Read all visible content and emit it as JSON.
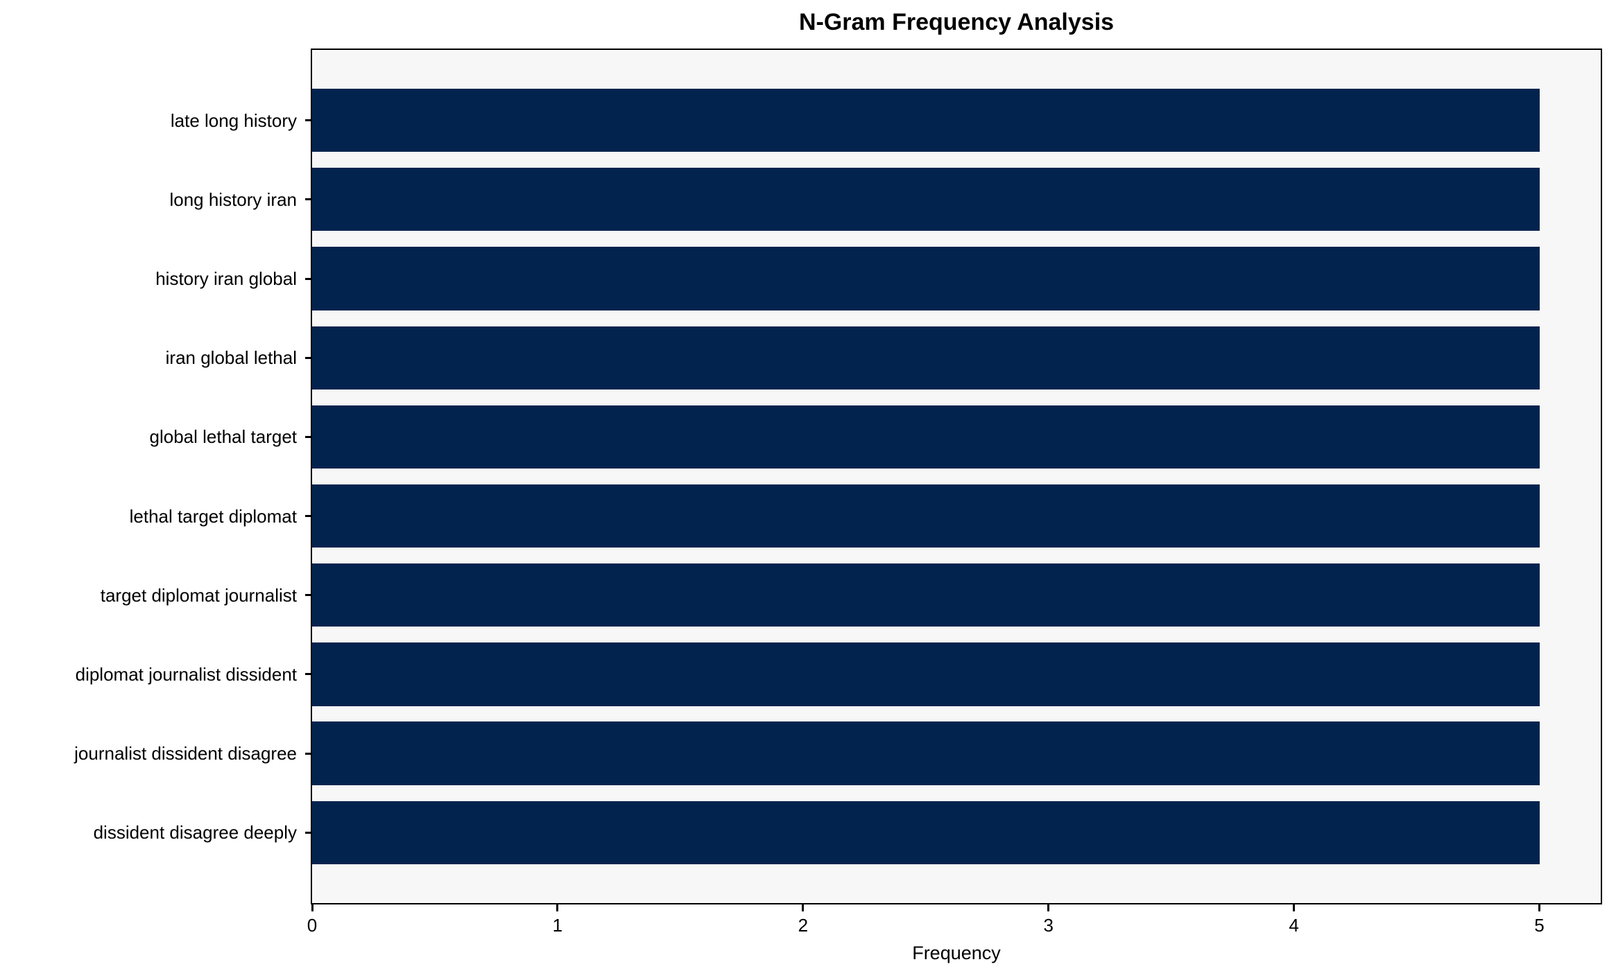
{
  "chart_data": {
    "type": "bar",
    "orientation": "horizontal",
    "title": "N-Gram Frequency Analysis",
    "xlabel": "Frequency",
    "ylabel": "",
    "categories": [
      "late long history",
      "long history iran",
      "history iran global",
      "iran global lethal",
      "global lethal target",
      "lethal target diplomat",
      "target diplomat journalist",
      "diplomat journalist dissident",
      "journalist dissident disagree",
      "dissident disagree deeply"
    ],
    "values": [
      5,
      5,
      5,
      5,
      5,
      5,
      5,
      5,
      5,
      5
    ],
    "x_ticks": [
      "0",
      "1",
      "2",
      "3",
      "4",
      "5"
    ],
    "x_tick_values": [
      0,
      1,
      2,
      3,
      4,
      5
    ],
    "xlim": [
      0,
      5.25
    ],
    "grid": false,
    "legend": null,
    "colors": {
      "bar": "#02234e",
      "plot_background": "#f7f7f7",
      "figure_background": "#ffffff",
      "text": "#000000",
      "spine": "#000000"
    }
  }
}
